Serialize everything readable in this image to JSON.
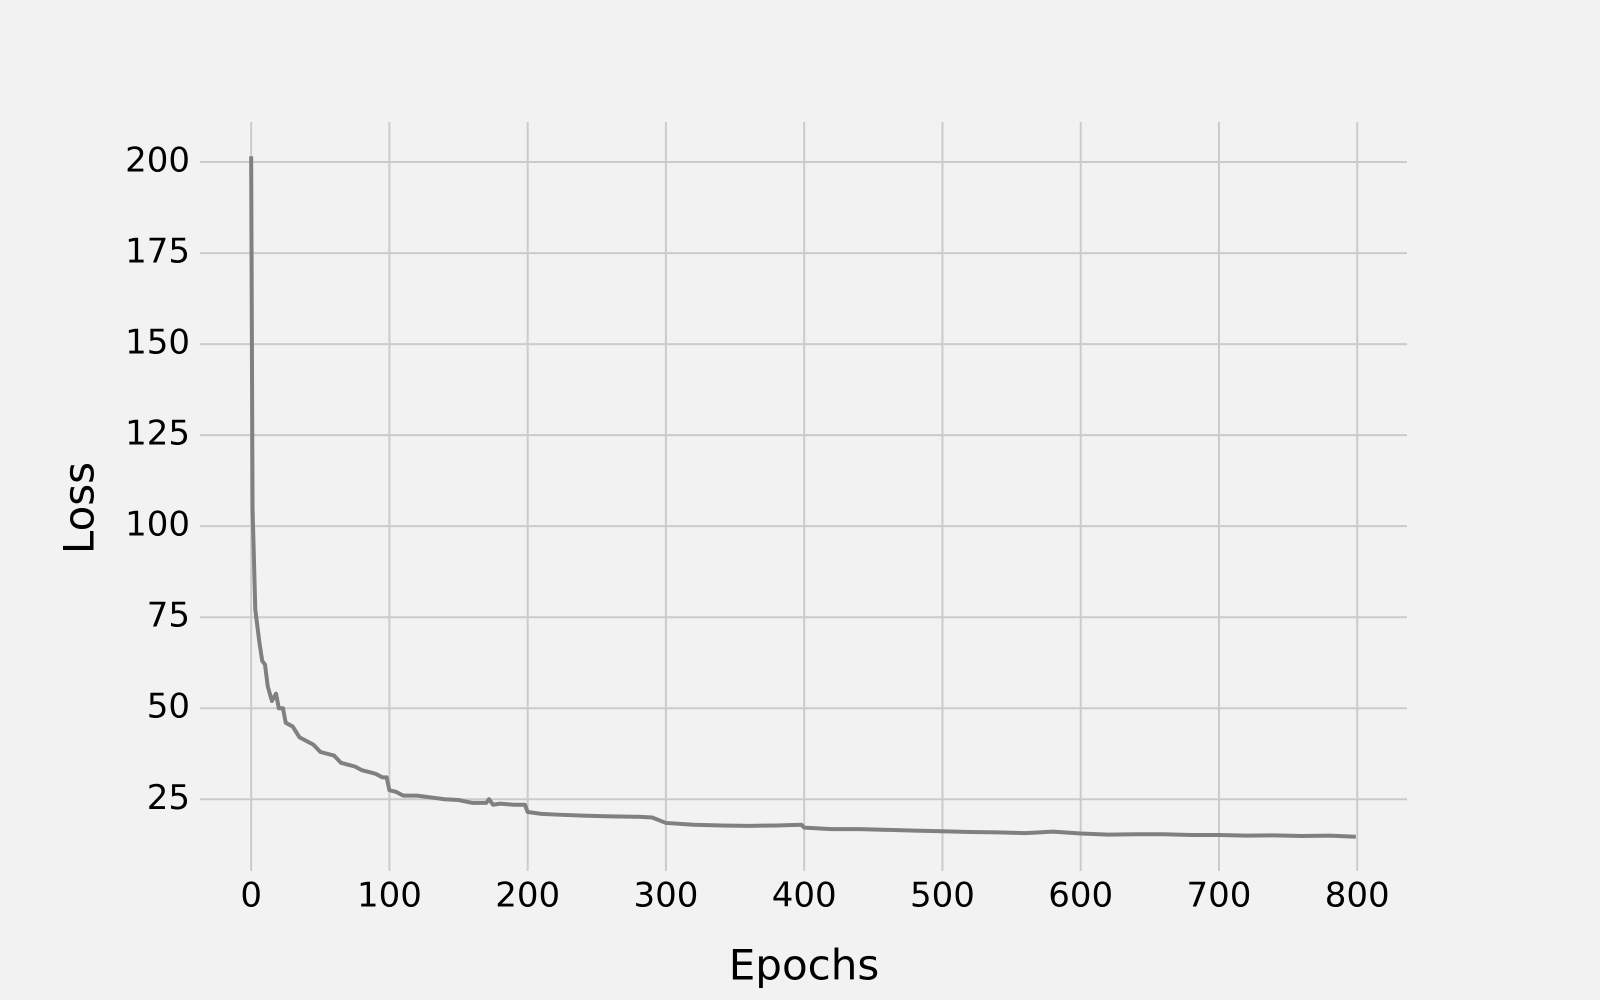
{
  "chart_data": {
    "type": "line",
    "xlabel": "Epochs",
    "ylabel": "Loss",
    "x": [
      0,
      1,
      3,
      6,
      8,
      10,
      12,
      15,
      18,
      20,
      23,
      25,
      30,
      35,
      40,
      45,
      50,
      55,
      60,
      65,
      70,
      75,
      80,
      85,
      90,
      95,
      98,
      100,
      105,
      110,
      120,
      130,
      140,
      150,
      160,
      170,
      172,
      175,
      180,
      190,
      198,
      200,
      210,
      220,
      240,
      260,
      280,
      290,
      300,
      320,
      340,
      360,
      380,
      398,
      400,
      420,
      440,
      460,
      480,
      500,
      520,
      540,
      560,
      580,
      600,
      620,
      640,
      660,
      680,
      700,
      720,
      740,
      760,
      780,
      799
    ],
    "values": [
      201.6,
      105,
      77,
      68,
      63,
      62,
      56,
      52,
      54,
      50,
      50,
      46,
      45,
      42,
      41,
      40,
      38,
      37.5,
      37,
      35,
      34.5,
      34,
      33,
      32.5,
      32,
      31,
      31,
      27.5,
      27,
      26,
      26,
      25.5,
      25,
      24.8,
      24,
      24,
      25,
      23.5,
      23.8,
      23.5,
      23.5,
      21.5,
      21,
      20.8,
      20.5,
      20.3,
      20.2,
      20,
      18.5,
      18,
      17.8,
      17.7,
      17.8,
      18,
      17.2,
      16.8,
      16.8,
      16.6,
      16.4,
      16.2,
      16,
      15.9,
      15.7,
      16.1,
      15.6,
      15.3,
      15.4,
      15.4,
      15.2,
      15.2,
      15.0,
      15.1,
      14.9,
      15.0,
      14.7
    ],
    "color": "#808080",
    "xlim": [
      -37,
      836
    ],
    "ylim": [
      5.3,
      211
    ],
    "xticks": [
      0,
      100,
      200,
      300,
      400,
      500,
      600,
      700,
      800
    ],
    "yticks": [
      25,
      50,
      75,
      100,
      125,
      150,
      175,
      200
    ],
    "grid": true
  }
}
